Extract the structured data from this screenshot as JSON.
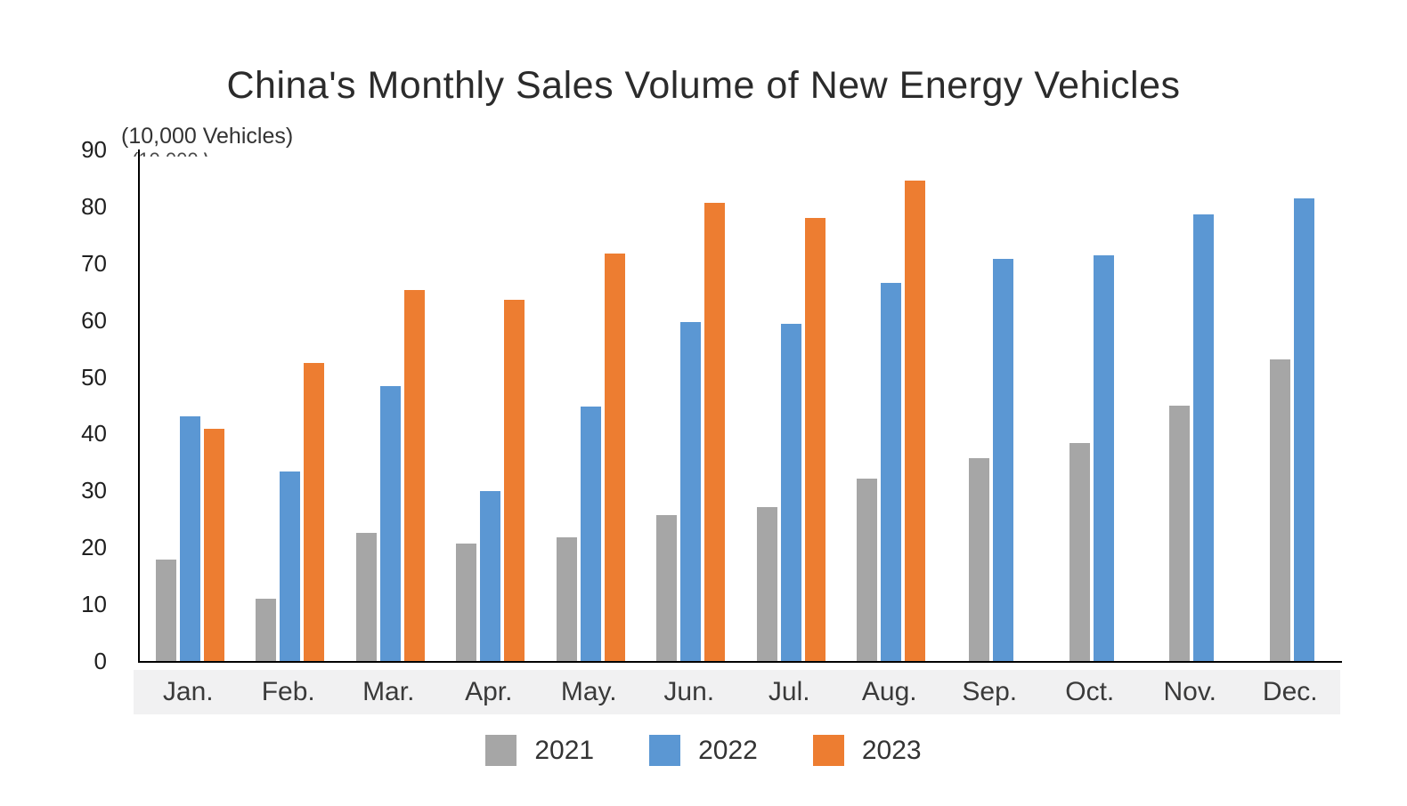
{
  "title": "China's Monthly Sales Volume of New Energy Vehicles",
  "axis_unit": "(10,000 Vehicles)",
  "chart_data": {
    "type": "bar",
    "title": "China's Monthly Sales Volume of New Energy Vehicles",
    "ylabel": "(10,000 Vehicles)",
    "xlabel": "",
    "ylim": [
      0,
      90
    ],
    "ytick_step": 10,
    "grid": false,
    "legend_position": "bottom",
    "categories": [
      "Jan.",
      "Feb.",
      "Mar.",
      "Apr.",
      "May.",
      "Jun.",
      "Jul.",
      "Aug.",
      "Sep.",
      "Oct.",
      "Nov.",
      "Dec."
    ],
    "series": [
      {
        "name": "2021",
        "color": "#a6a6a6",
        "values": [
          17.9,
          11.0,
          22.6,
          20.6,
          21.7,
          25.6,
          27.1,
          32.1,
          35.7,
          38.3,
          45.0,
          53.1
        ]
      },
      {
        "name": "2022",
        "color": "#5b97d3",
        "values": [
          43.1,
          33.4,
          48.4,
          29.9,
          44.7,
          59.6,
          59.3,
          66.6,
          70.8,
          71.4,
          78.6,
          81.4
        ]
      },
      {
        "name": "2023",
        "color": "#ed7d31",
        "values": [
          40.8,
          52.5,
          65.3,
          63.6,
          71.7,
          80.6,
          78.0,
          84.6,
          null,
          null,
          null,
          null
        ]
      }
    ]
  },
  "y_tick_labels": [
    "0",
    "10",
    "20",
    "30",
    "40",
    "50",
    "60",
    "70",
    "80",
    "90"
  ],
  "legend": {
    "items": [
      {
        "label": "2021",
        "color": "#a6a6a6"
      },
      {
        "label": "2022",
        "color": "#5b97d3"
      },
      {
        "label": "2023",
        "color": "#ed7d31"
      }
    ]
  }
}
